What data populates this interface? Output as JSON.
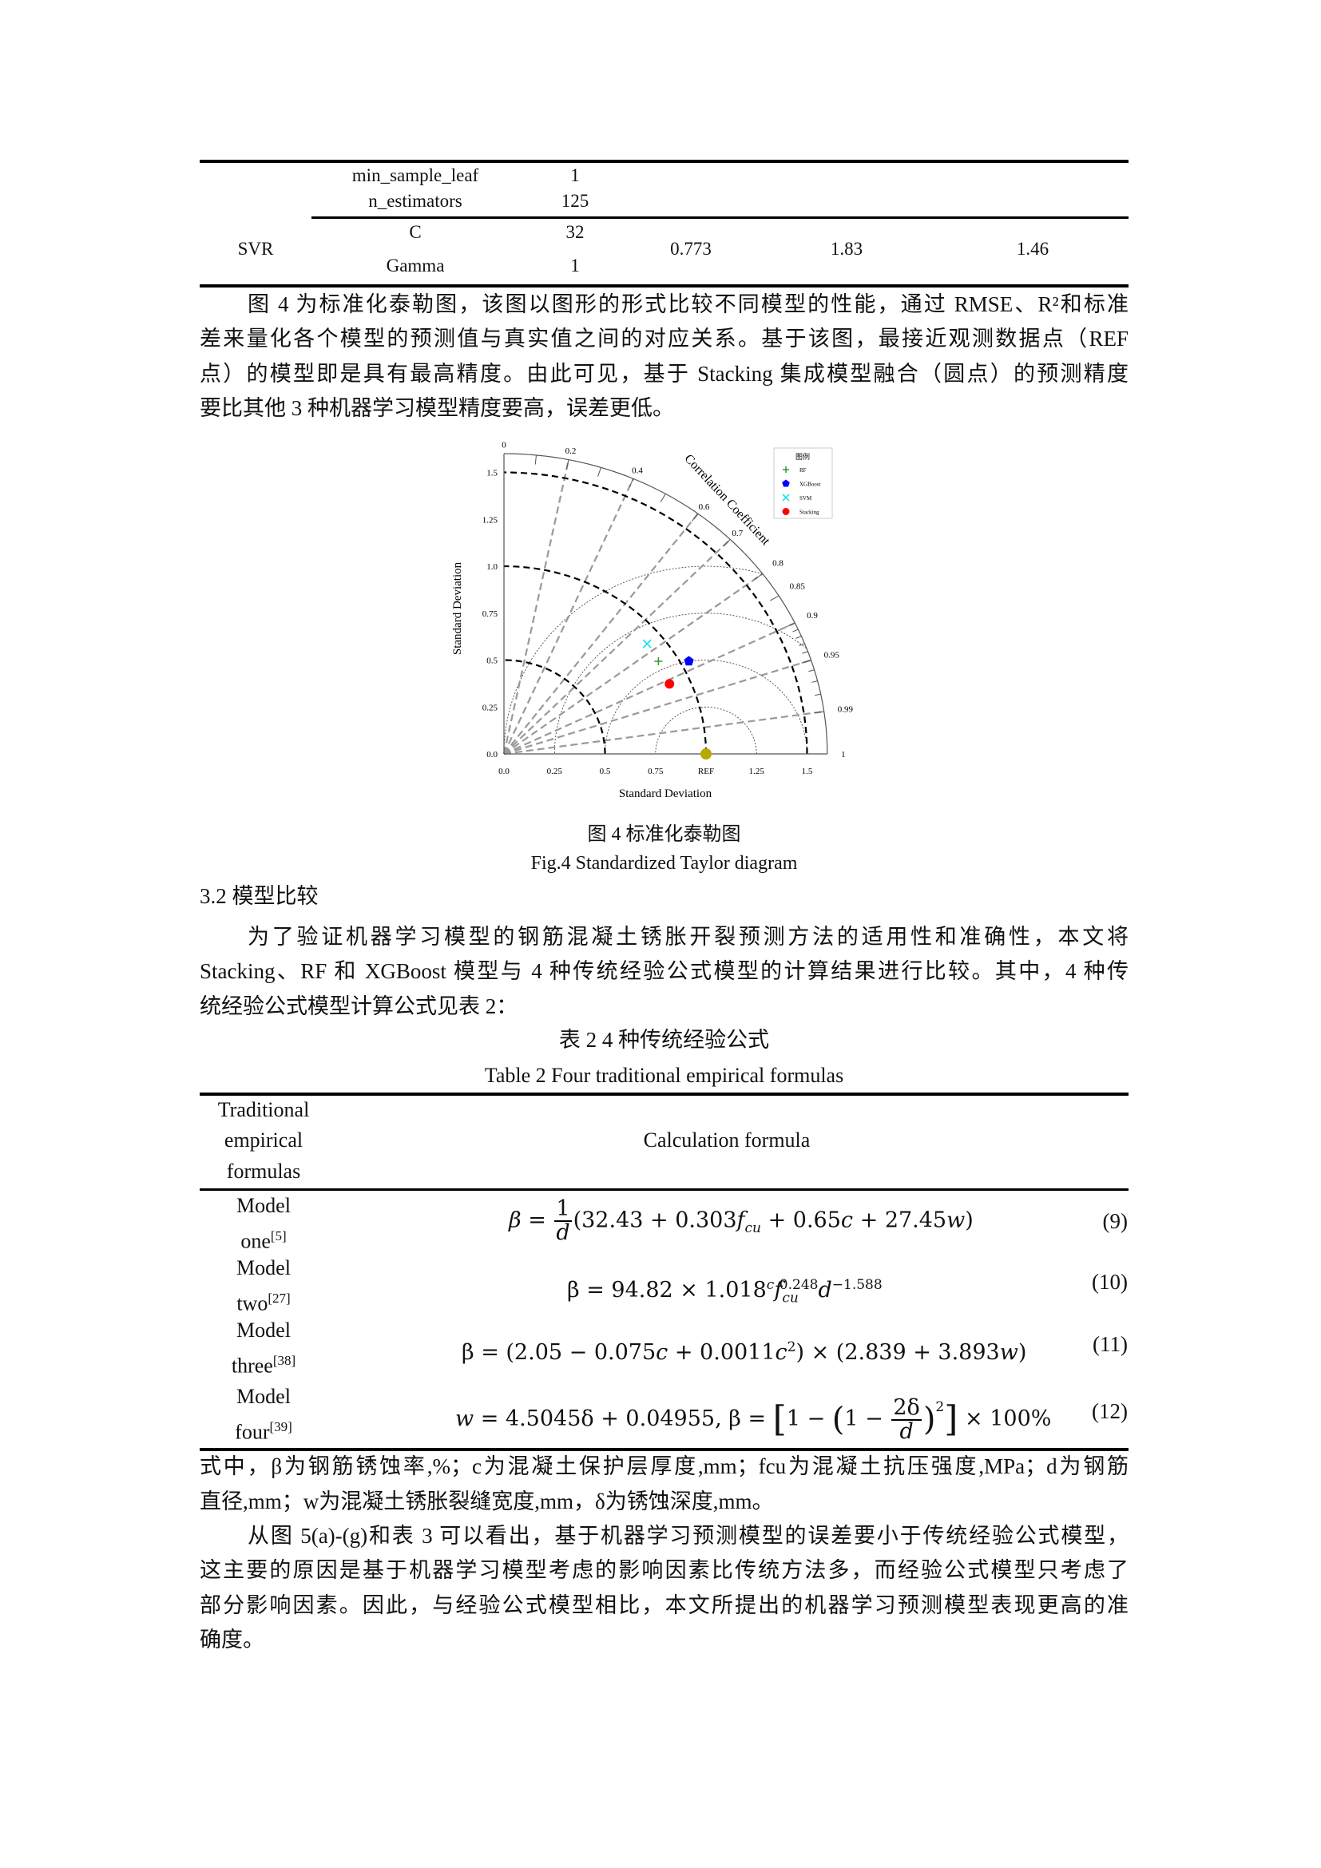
{
  "table1": {
    "rows": [
      {
        "param": "min_sample_leaf",
        "value": "1"
      },
      {
        "param": "n_estimators",
        "value": "125"
      }
    ],
    "svr": {
      "model": "SVR",
      "params": [
        {
          "param": "C",
          "value": "32"
        },
        {
          "param": "Gamma",
          "value": "1"
        }
      ],
      "r2": "0.773",
      "rmse": "1.83",
      "mae": "1.46"
    }
  },
  "para1": [
    "图 4 为标准化泰勒图，该图以图形的形式比较不同模型的性能，通过 RMSE、R²和标准",
    "差来量化各个模型的预测值与真实值之间的对应关系。基于该图，最接近观测数据点（REF",
    "点）的模型即是具有最高精度。由此可见，基于 Stacking 集成模型融合（圆点）的预测精度",
    "要比其他 3 种机器学习模型精度要高，误差更低。"
  ],
  "chart_data": {
    "type": "taylor",
    "xlabel": "Standard Deviation",
    "ylabel": "Standard Deviation",
    "angular_label": "Correlation Coefficient",
    "std_range": [
      0,
      1.6
    ],
    "std_ticks_x": [
      "0.0",
      "0.25",
      "0.5",
      "0.75",
      "REF",
      "1.25",
      "1.5"
    ],
    "std_ticks_y": [
      "0.0",
      "0.25",
      "0.5",
      "0.75",
      "1.0",
      "1.25",
      "1.5"
    ],
    "correlation_ticks": [
      "0",
      "0.2",
      "0.4",
      "0.6",
      "0.7",
      "0.8",
      "0.85",
      "0.9",
      "0.95",
      "0.99",
      "1"
    ],
    "reference": {
      "label": "REF",
      "std": 1.0,
      "correlation": 1.0,
      "color": "#b8a800"
    },
    "legend_title": "图例",
    "legend_position": "top-right",
    "series": [
      {
        "name": "RF",
        "std": 0.91,
        "correlation": 0.84,
        "marker": "plus",
        "color": "#2e9a2e"
      },
      {
        "name": "XGBoost",
        "std": 1.04,
        "correlation": 0.88,
        "marker": "pentagon",
        "color": "#0000ff"
      },
      {
        "name": "SVM",
        "std": 0.92,
        "correlation": 0.77,
        "marker": "x",
        "color": "#00e0ee"
      },
      {
        "name": "Stacking",
        "std": 0.9,
        "correlation": 0.91,
        "marker": "circle",
        "color": "#ff0000"
      }
    ]
  },
  "fig4": {
    "caption_cn": "图 4 标准化泰勒图",
    "caption_en": "Fig.4 Standardized Taylor diagram"
  },
  "section": "3.2 模型比较",
  "para2": [
    "为了验证机器学习模型的钢筋混凝土锈胀开裂预测方法的适用性和准确性，本文将",
    "Stacking、RF 和 XGBoost 模型与 4 种传统经验公式模型的计算结果进行比较。其中，4 种传",
    "统经验公式模型计算公式见表 2："
  ],
  "table2": {
    "caption_cn": "表 2 4 种传统经验公式",
    "caption_en": "Table 2 Four traditional empirical formulas",
    "header": {
      "col1": [
        "Traditional",
        "empirical",
        "formulas"
      ],
      "col2": "Calculation formula"
    },
    "rows": [
      {
        "model": "Model",
        "name": "one",
        "ref": "[5]",
        "eq": "(9)"
      },
      {
        "model": "Model",
        "name": "two",
        "ref": "[27]",
        "eq": "(10)"
      },
      {
        "model": "Model",
        "name": "three",
        "ref": "[38]",
        "eq": "(11)"
      },
      {
        "model": "Model",
        "name": "four",
        "ref": "[39]",
        "eq": "(12)"
      }
    ],
    "f9": {
      "lhs": "β = ",
      "num": "1",
      "den": "d",
      "a": "(32.43 + 0.303",
      "f": "f",
      "sub": "cu",
      "b": " + 0.65",
      "c": "c",
      "d": " + 27.45",
      "w": "w",
      "e": ")"
    },
    "f10": {
      "lhs": "β = 94.82 × 1.018",
      "sup1": "c",
      "f": "f",
      "sub": "cu",
      "sup2": "0.248",
      "d": "d",
      "sup3": "−1.588"
    },
    "f11": {
      "lhs": "β = (2.05 − 0.075",
      "c": "c",
      "a": " + 0.0011",
      "c2": "c",
      "sup": "2",
      "b": ") × (2.839 + 3.893",
      "w": "w",
      "e": ")"
    },
    "f12": {
      "w": "w",
      "a": " = 4.5045δ + 0.04955, β = ",
      "b": "1 − ",
      "c": "1 − ",
      "num": "2δ",
      "den": "d",
      "sup": "2",
      "e": " × 100%"
    }
  },
  "notes": [
    "式中，β为钢筋锈蚀率,%；c为混凝土保护层厚度,mm；fcu为混凝土抗压强度,MPa；d为钢筋",
    "直径,mm；w为混凝土锈胀裂缝宽度,mm，δ为锈蚀深度,mm。"
  ],
  "para3": [
    "从图 5(a)-(g)和表 3 可以看出，基于机器学习预测模型的误差要小于传统经验公式模型，",
    "这主要的原因是基于机器学习模型考虑的影响因素比传统方法多，而经验公式模型只考虑了",
    "部分影响因素。因此，与经验公式模型相比，本文所提出的机器学习预测模型表现更高的准",
    "确度。"
  ]
}
